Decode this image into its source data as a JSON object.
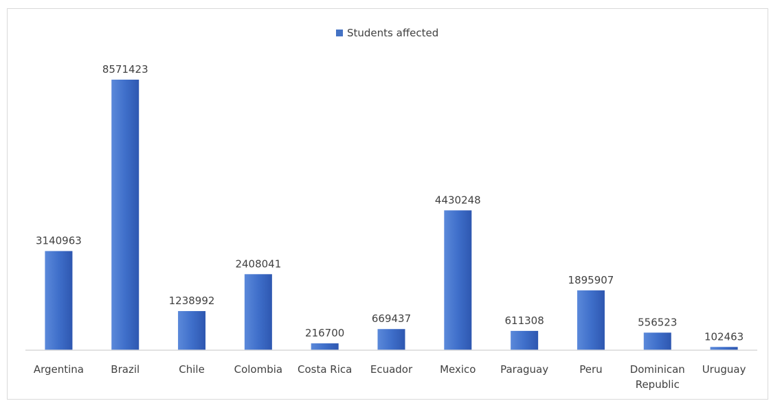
{
  "chart_data": {
    "type": "bar",
    "title": "",
    "xlabel": "",
    "ylabel": "",
    "legend": {
      "position": "top",
      "entries": [
        "Students affected"
      ]
    },
    "categories": [
      [
        "Argentina"
      ],
      [
        "Brazil"
      ],
      [
        "Chile"
      ],
      [
        "Colombia"
      ],
      [
        "Costa Rica"
      ],
      [
        "Ecuador"
      ],
      [
        "Mexico"
      ],
      [
        "Paraguay"
      ],
      [
        "Peru"
      ],
      [
        "Dominican",
        "Republic"
      ],
      [
        "Uruguay"
      ]
    ],
    "series": [
      {
        "name": "Students affected",
        "color": "#4472c4",
        "values": [
          3140963,
          8571423,
          1238992,
          2408041,
          216700,
          669437,
          4430248,
          611308,
          1895907,
          556523,
          102463
        ]
      }
    ],
    "ylim": [
      0,
      8571423
    ],
    "grid": false,
    "data_labels": true
  }
}
